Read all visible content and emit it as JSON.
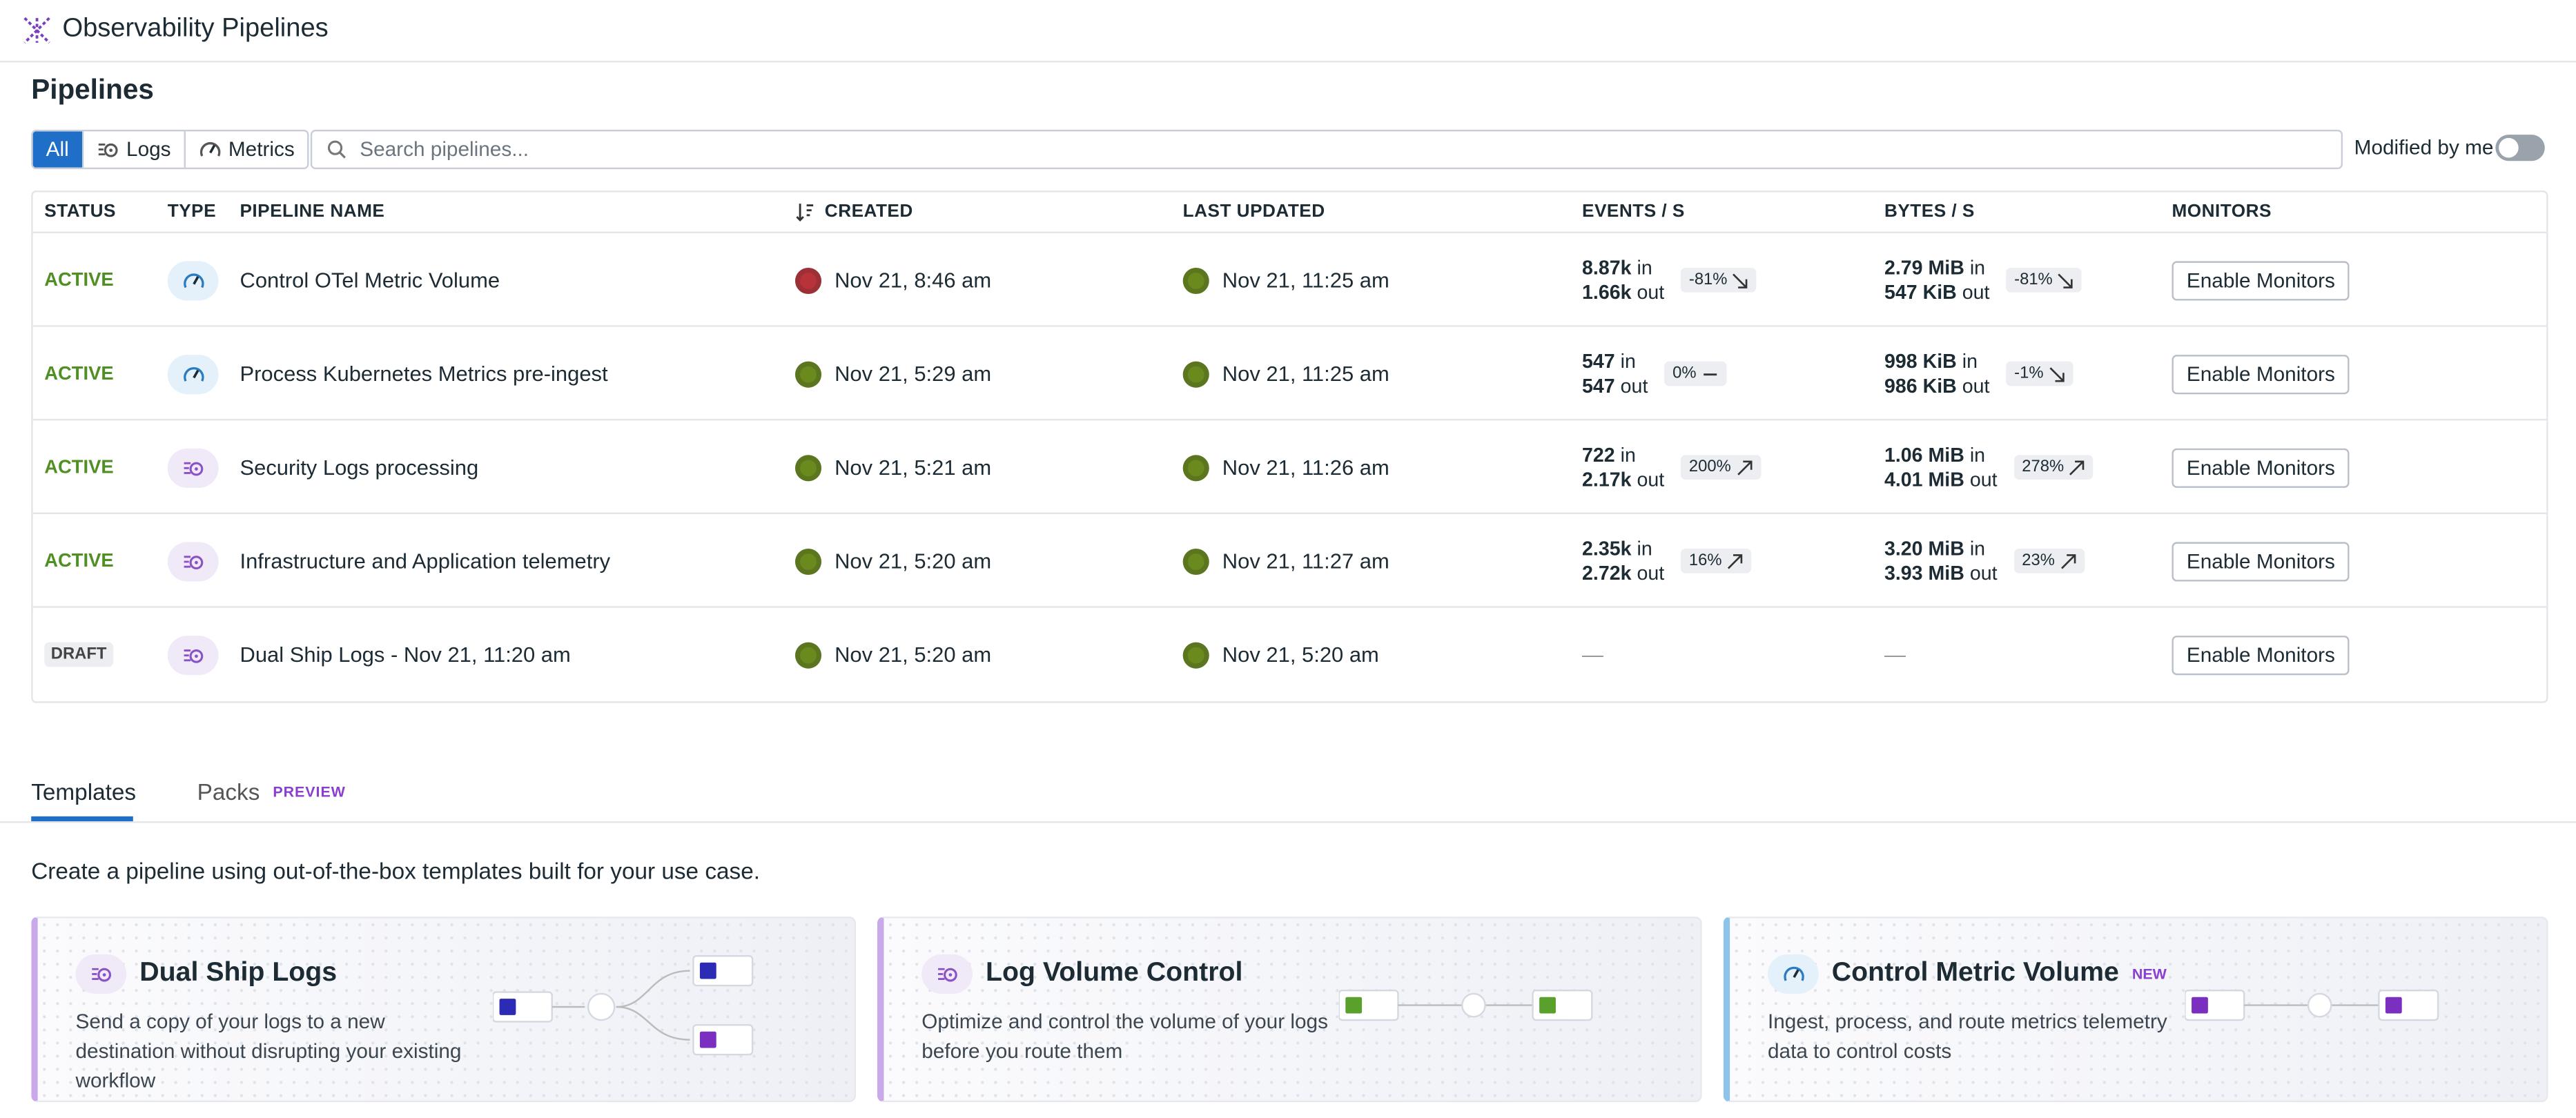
{
  "header": {
    "title": "Observability Pipelines"
  },
  "section_title": "Pipelines",
  "filters": {
    "options": [
      "All",
      "Logs",
      "Metrics"
    ],
    "selected": 0,
    "search_placeholder": "Search pipelines...",
    "toggle_label": "Modified by me",
    "toggle_on": false
  },
  "table": {
    "columns": [
      "STATUS",
      "TYPE",
      "PIPELINE NAME",
      "CREATED",
      "LAST UPDATED",
      "EVENTS / S",
      "BYTES / S",
      "MONITORS"
    ],
    "in_label": "in",
    "out_label": "out",
    "rows": [
      {
        "status": "ACTIVE",
        "type": "metrics",
        "name": "Control OTel Metric Volume",
        "created": "Nov 21, 8:46 am",
        "last_updated": "Nov 21, 11:25 am",
        "events": {
          "in": "8.87k",
          "out": "1.66k",
          "change": "-81%",
          "trend": "down"
        },
        "bytes": {
          "in": "2.79 MiB",
          "out": "547 KiB",
          "change": "-81%",
          "trend": "down"
        },
        "monitors": "Enable Monitors"
      },
      {
        "status": "ACTIVE",
        "type": "metrics",
        "name": "Process Kubernetes Metrics pre-ingest",
        "created": "Nov 21, 5:29 am",
        "last_updated": "Nov 21, 11:25 am",
        "events": {
          "in": "547",
          "out": "547",
          "change": "0%",
          "trend": "flat"
        },
        "bytes": {
          "in": "998 KiB",
          "out": "986 KiB",
          "change": "-1%",
          "trend": "down"
        },
        "monitors": "Enable Monitors"
      },
      {
        "status": "ACTIVE",
        "type": "logs",
        "name": "Security Logs processing",
        "created": "Nov 21, 5:21 am",
        "last_updated": "Nov 21, 11:26 am",
        "events": {
          "in": "722",
          "out": "2.17k",
          "change": "200%",
          "trend": "up"
        },
        "bytes": {
          "in": "1.06 MiB",
          "out": "4.01 MiB",
          "change": "278%",
          "trend": "up"
        },
        "monitors": "Enable Monitors"
      },
      {
        "status": "ACTIVE",
        "type": "logs",
        "name": "Infrastructure and Application telemetry",
        "created": "Nov 21, 5:20 am",
        "last_updated": "Nov 21, 11:27 am",
        "events": {
          "in": "2.35k",
          "out": "2.72k",
          "change": "16%",
          "trend": "up"
        },
        "bytes": {
          "in": "3.20 MiB",
          "out": "3.93 MiB",
          "change": "23%",
          "trend": "up"
        },
        "monitors": "Enable Monitors"
      },
      {
        "status": "DRAFT",
        "type": "logs",
        "name": "Dual Ship Logs - Nov 21, 11:20 am",
        "created": "Nov 21, 5:20 am",
        "last_updated": "Nov 21, 5:20 am",
        "events": {
          "empty": "—"
        },
        "bytes": {
          "empty": "—"
        },
        "monitors": "Enable Monitors"
      }
    ]
  },
  "tabs": {
    "items": [
      {
        "label": "Templates"
      },
      {
        "label": "Packs",
        "badge": "PREVIEW"
      }
    ],
    "selected": 0
  },
  "templates": {
    "description": "Create a pipeline using out-of-the-box templates built for your use case.",
    "cards": [
      {
        "type": "logs",
        "title": "Dual Ship Logs",
        "description": "Send a copy of your logs to a new destination without disrupting your existing workflow"
      },
      {
        "type": "logs",
        "title": "Log Volume Control",
        "description": "Optimize and control the volume of your logs before you route them"
      },
      {
        "type": "metrics",
        "title": "Control Metric Volume",
        "badge": "NEW",
        "description": "Ingest, process, and route metrics telemetry data to control costs"
      }
    ]
  }
}
